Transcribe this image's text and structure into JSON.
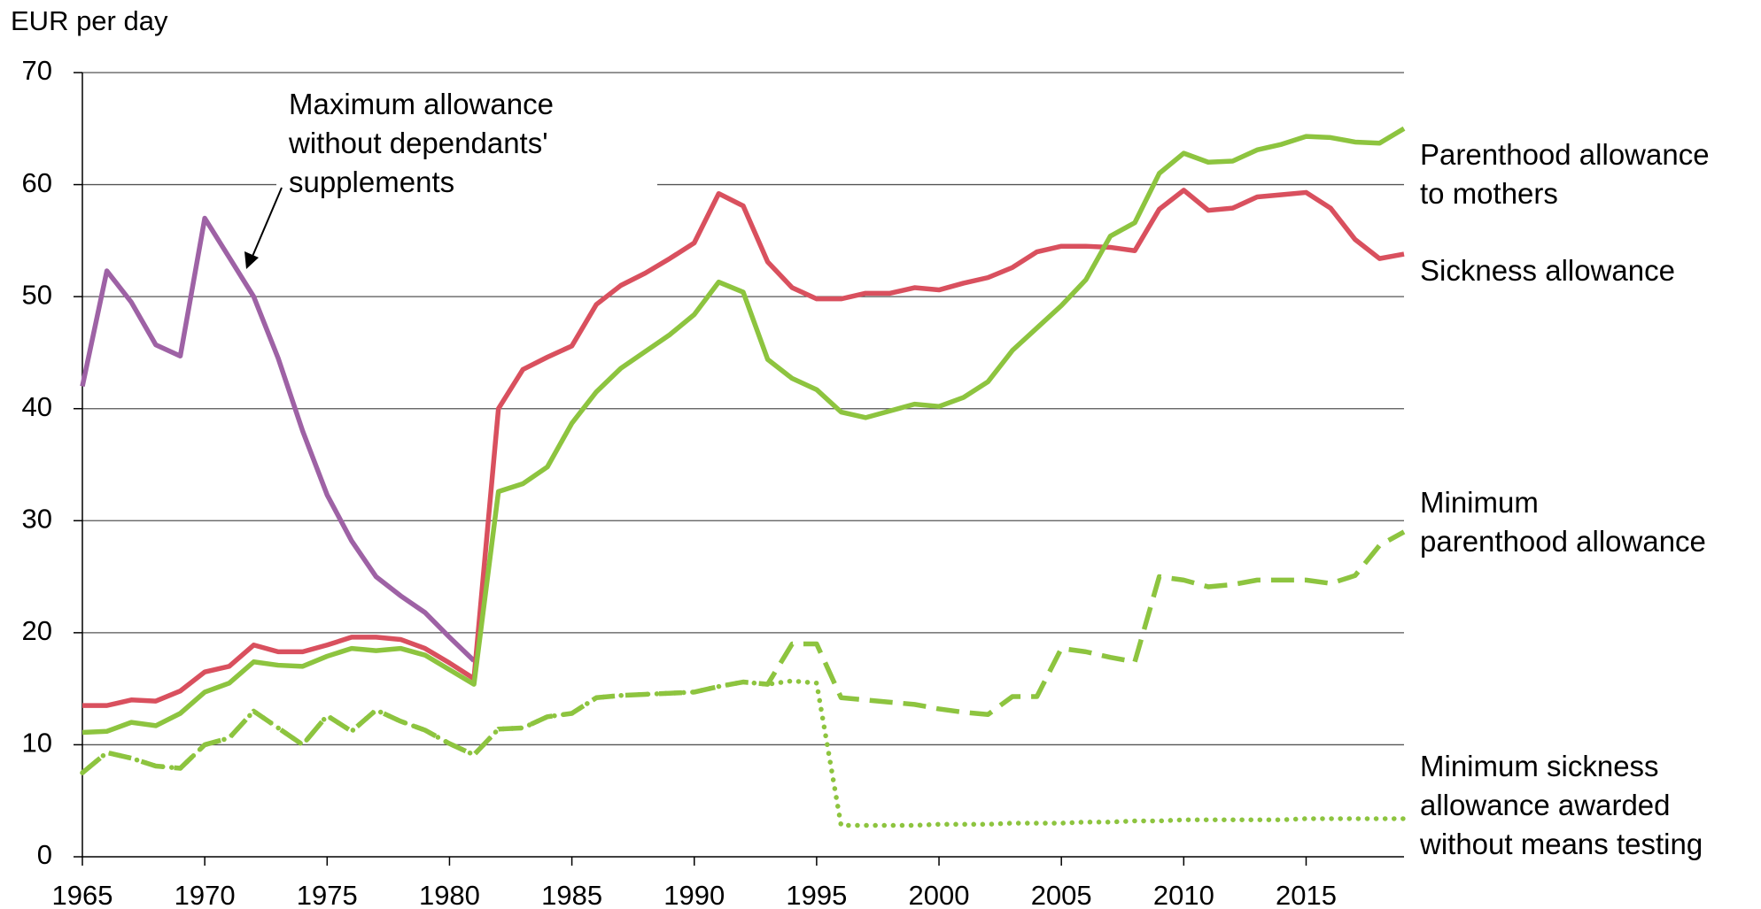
{
  "chart_data": {
    "type": "line",
    "y_axis_label": "EUR per day",
    "x": [
      1965,
      1966,
      1967,
      1968,
      1969,
      1970,
      1971,
      1972,
      1973,
      1974,
      1975,
      1976,
      1977,
      1978,
      1979,
      1980,
      1981,
      1982,
      1983,
      1984,
      1985,
      1986,
      1987,
      1988,
      1989,
      1990,
      1991,
      1992,
      1993,
      1994,
      1995,
      1996,
      1997,
      1998,
      1999,
      2000,
      2001,
      2002,
      2003,
      2004,
      2005,
      2006,
      2007,
      2008,
      2009,
      2010,
      2011,
      2012,
      2013,
      2014,
      2015,
      2016,
      2017,
      2018,
      2019
    ],
    "xlim": [
      1965,
      2019
    ],
    "xticks": [
      1965,
      1970,
      1975,
      1980,
      1985,
      1990,
      1995,
      2000,
      2005,
      2010,
      2015
    ],
    "ylim": [
      0,
      70
    ],
    "yticks": [
      0,
      10,
      20,
      30,
      40,
      50,
      60,
      70
    ],
    "grid": true,
    "series": [
      {
        "name": "Maximum allowance\nwithout dependants'\nsupplements",
        "color": "#9e62a5",
        "style": "solid",
        "values": [
          42,
          52.3,
          49.5,
          45.7,
          44.7,
          57,
          53.5,
          50,
          44.5,
          38,
          32.3,
          28.2,
          25,
          23.3,
          21.8,
          19.6,
          17.5,
          null,
          null,
          null,
          null,
          null,
          null,
          null,
          null,
          null,
          null,
          null,
          null,
          null,
          null,
          null,
          null,
          null,
          null,
          null,
          null,
          null,
          null,
          null,
          null,
          null,
          null,
          null,
          null,
          null,
          null,
          null,
          null,
          null,
          null,
          null,
          null,
          null,
          null
        ]
      },
      {
        "name": "Sickness allowance",
        "color": "#d9505e",
        "style": "solid",
        "values": [
          13.5,
          13.5,
          14,
          13.9,
          14.8,
          16.5,
          17,
          18.9,
          18.3,
          18.3,
          18.9,
          19.6,
          19.6,
          19.4,
          18.6,
          17.3,
          15.9,
          40,
          43.5,
          44.6,
          45.6,
          49.3,
          51,
          52.1,
          53.4,
          54.8,
          59.2,
          58.1,
          53.1,
          50.8,
          49.8,
          49.8,
          50.3,
          50.3,
          50.8,
          50.6,
          51.2,
          51.7,
          52.6,
          54,
          54.5,
          54.5,
          54.4,
          54.1,
          57.8,
          59.5,
          57.7,
          57.9,
          58.9,
          59.1,
          59.3,
          57.9,
          55.1,
          53.4,
          53.8
        ]
      },
      {
        "name": "Parenthood allowance\nto mothers",
        "color": "#8dc43f",
        "style": "solid",
        "values": [
          11.1,
          11.2,
          12,
          11.7,
          12.8,
          14.7,
          15.5,
          17.4,
          17.1,
          17,
          17.9,
          18.6,
          18.4,
          18.6,
          18,
          16.7,
          15.4,
          32.6,
          33.3,
          34.8,
          38.7,
          41.5,
          43.6,
          45.1,
          46.6,
          48.4,
          51.3,
          50.4,
          44.4,
          42.7,
          41.7,
          39.7,
          39.2,
          39.8,
          40.4,
          40.2,
          41,
          42.4,
          45.2,
          47.2,
          49.2,
          51.5,
          55.4,
          56.6,
          61,
          62.8,
          62,
          62.1,
          63.1,
          63.6,
          64.3,
          64.2,
          63.8,
          63.7,
          65
        ]
      },
      {
        "name": "Minimum\nparenthood allowance",
        "color": "#8dc43f",
        "style": "dashed",
        "values": [
          7.5,
          9.3,
          8.8,
          8.1,
          7.9,
          10,
          10.6,
          13,
          11.5,
          10,
          12.6,
          11.2,
          13.1,
          12.1,
          11.3,
          10.1,
          9.1,
          11.4,
          11.5,
          12.5,
          12.8,
          14.2,
          14.4,
          14.5,
          14.6,
          14.7,
          15.2,
          15.6,
          15.4,
          19,
          19,
          14.2,
          14,
          13.8,
          13.6,
          13.2,
          12.9,
          12.7,
          14.3,
          14.3,
          18.6,
          18.3,
          17.8,
          17.4,
          25,
          24.7,
          24.1,
          24.3,
          24.7,
          24.7,
          24.7,
          24.4,
          25.1,
          27.8,
          29
        ]
      },
      {
        "name": "Minimum sickness\nallowance awarded\nwithout means testing",
        "color": "#8dc43f",
        "style": "dotted",
        "values": [
          7.5,
          9.3,
          8.8,
          8.1,
          7.9,
          10,
          10.6,
          13,
          11.5,
          10,
          12.6,
          11.2,
          13.1,
          12.1,
          11.3,
          10.1,
          9.1,
          11.4,
          11.5,
          12.5,
          12.8,
          14.2,
          14.4,
          14.5,
          14.6,
          14.7,
          15.2,
          15.6,
          15.4,
          15.7,
          15.5,
          2.8,
          2.8,
          2.8,
          2.8,
          2.9,
          2.9,
          2.9,
          3,
          3,
          3,
          3.1,
          3.1,
          3.2,
          3.2,
          3.3,
          3.3,
          3.3,
          3.3,
          3.3,
          3.4,
          3.4,
          3.4,
          3.4,
          3.4
        ]
      }
    ]
  }
}
